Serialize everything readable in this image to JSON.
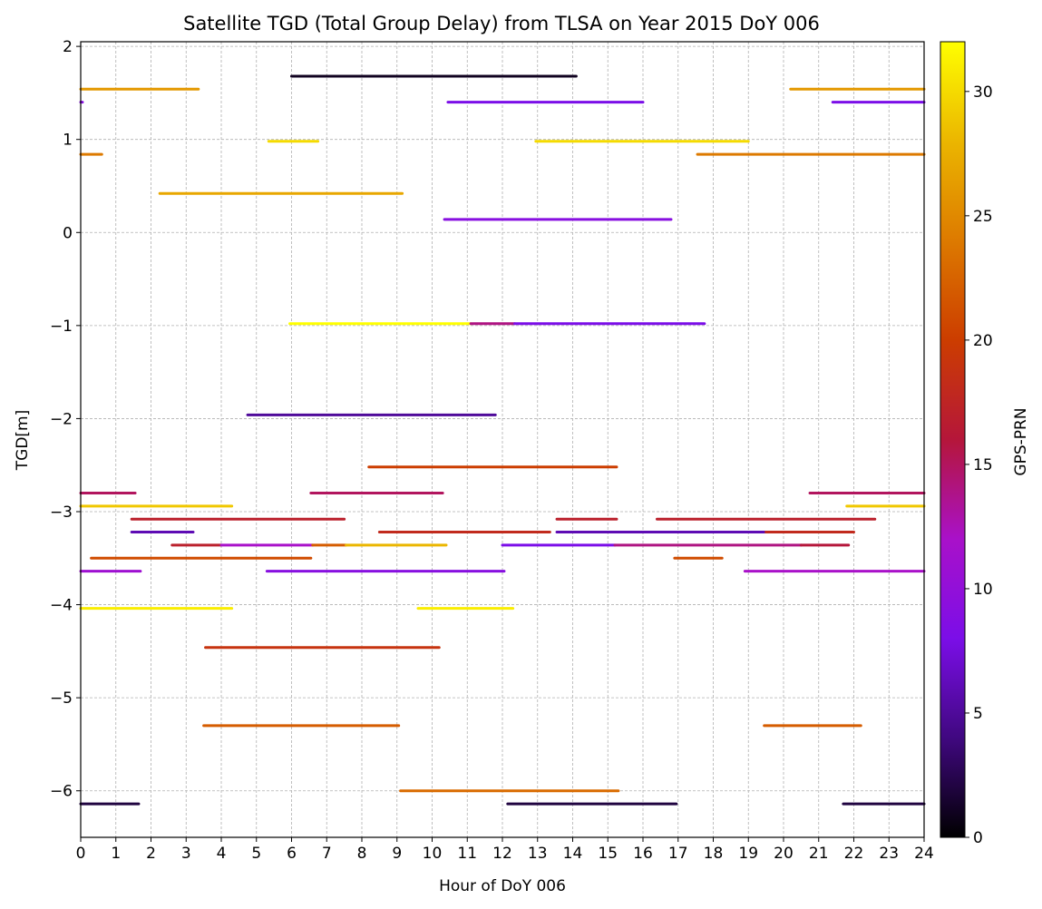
{
  "chart_data": {
    "type": "line",
    "title": "Satellite TGD (Total Group Delay) from TLSA on Year 2015 DoY 006",
    "xlabel": "Hour of DoY 006",
    "ylabel": "TGD[m]",
    "xlim": [
      0,
      24
    ],
    "ylim": [
      -6.5,
      2.05
    ],
    "x_ticks": [
      "0",
      "1",
      "2",
      "3",
      "4",
      "5",
      "6",
      "7",
      "8",
      "9",
      "10",
      "11",
      "12",
      "13",
      "14",
      "15",
      "16",
      "17",
      "18",
      "19",
      "20",
      "21",
      "22",
      "23",
      "24"
    ],
    "y_ticks": [
      {
        "value": 2,
        "label": "2"
      },
      {
        "value": 1,
        "label": "1"
      },
      {
        "value": 0,
        "label": "0"
      },
      {
        "value": -1,
        "label": "−1"
      },
      {
        "value": -2,
        "label": "−2"
      },
      {
        "value": -3,
        "label": "−3"
      },
      {
        "value": -4,
        "label": "−4"
      },
      {
        "value": -5,
        "label": "−5"
      },
      {
        "value": -6,
        "label": "−6"
      }
    ],
    "grid": true,
    "colorbar": {
      "label": "GPS-PRN",
      "range": [
        0,
        32
      ],
      "colormap": "gnuplot",
      "ticks": [
        {
          "value": 0,
          "label": "0"
        },
        {
          "value": 5,
          "label": "5"
        },
        {
          "value": 10,
          "label": "10"
        },
        {
          "value": 15,
          "label": "15"
        },
        {
          "value": 20,
          "label": "20"
        },
        {
          "value": 25,
          "label": "25"
        },
        {
          "value": 30,
          "label": "30"
        }
      ]
    },
    "segments": [
      {
        "x0": 6.0,
        "x1": 14.1,
        "tgd": 1.68,
        "prn": 1
      },
      {
        "x0": 0.0,
        "x1": 3.35,
        "tgd": 1.54,
        "prn": 26
      },
      {
        "x0": 20.2,
        "x1": 24.0,
        "tgd": 1.54,
        "prn": 26
      },
      {
        "x0": 0.0,
        "x1": 0.05,
        "tgd": 1.4,
        "prn": 9
      },
      {
        "x0": 10.45,
        "x1": 16.0,
        "tgd": 1.4,
        "prn": 8
      },
      {
        "x0": 21.4,
        "x1": 24.0,
        "tgd": 1.4,
        "prn": 8
      },
      {
        "x0": 5.35,
        "x1": 6.75,
        "tgd": 0.98,
        "prn": 30
      },
      {
        "x0": 12.95,
        "x1": 19.0,
        "tgd": 0.98,
        "prn": 30
      },
      {
        "x0": 0.0,
        "x1": 0.6,
        "tgd": 0.84,
        "prn": 24
      },
      {
        "x0": 17.55,
        "x1": 24.0,
        "tgd": 0.84,
        "prn": 24
      },
      {
        "x0": 2.25,
        "x1": 9.15,
        "tgd": 0.42,
        "prn": 27
      },
      {
        "x0": 10.35,
        "x1": 16.8,
        "tgd": 0.14,
        "prn": 9
      },
      {
        "x0": 5.95,
        "x1": 11.1,
        "tgd": -0.98,
        "prn": 32
      },
      {
        "x0": 11.1,
        "x1": 12.35,
        "tgd": -0.98,
        "prn": 14
      },
      {
        "x0": 12.35,
        "x1": 17.75,
        "tgd": -0.98,
        "prn": 8
      },
      {
        "x0": 4.75,
        "x1": 11.8,
        "tgd": -1.96,
        "prn": 5
      },
      {
        "x0": 8.2,
        "x1": 15.25,
        "tgd": -2.52,
        "prn": 20
      },
      {
        "x0": 0.0,
        "x1": 1.55,
        "tgd": -2.8,
        "prn": 15
      },
      {
        "x0": 6.55,
        "x1": 10.3,
        "tgd": -2.8,
        "prn": 15
      },
      {
        "x0": 20.75,
        "x1": 24.0,
        "tgd": -2.8,
        "prn": 15
      },
      {
        "x0": 0.0,
        "x1": 4.3,
        "tgd": -2.94,
        "prn": 29
      },
      {
        "x0": 21.8,
        "x1": 24.0,
        "tgd": -2.94,
        "prn": 29
      },
      {
        "x0": 1.45,
        "x1": 7.5,
        "tgd": -3.08,
        "prn": 17
      },
      {
        "x0": 13.55,
        "x1": 15.25,
        "tgd": -3.08,
        "prn": 17
      },
      {
        "x0": 16.4,
        "x1": 22.6,
        "tgd": -3.08,
        "prn": 17
      },
      {
        "x0": 1.45,
        "x1": 3.2,
        "tgd": -3.22,
        "prn": 6
      },
      {
        "x0": 8.5,
        "x1": 13.35,
        "tgd": -3.22,
        "prn": 18
      },
      {
        "x0": 13.55,
        "x1": 19.5,
        "tgd": -3.22,
        "prn": 6
      },
      {
        "x0": 19.5,
        "x1": 22.0,
        "tgd": -3.22,
        "prn": 18
      },
      {
        "x0": 2.6,
        "x1": 4.0,
        "tgd": -3.36,
        "prn": 17
      },
      {
        "x0": 4.0,
        "x1": 6.6,
        "tgd": -3.36,
        "prn": 12
      },
      {
        "x0": 6.6,
        "x1": 7.55,
        "tgd": -3.36,
        "prn": 22
      },
      {
        "x0": 7.55,
        "x1": 10.4,
        "tgd": -3.36,
        "prn": 28
      },
      {
        "x0": 12.0,
        "x1": 15.2,
        "tgd": -3.36,
        "prn": 8
      },
      {
        "x0": 15.2,
        "x1": 20.5,
        "tgd": -3.36,
        "prn": 14
      },
      {
        "x0": 20.5,
        "x1": 21.85,
        "tgd": -3.36,
        "prn": 16
      },
      {
        "x0": 0.3,
        "x1": 6.55,
        "tgd": -3.5,
        "prn": 21
      },
      {
        "x0": 16.9,
        "x1": 18.25,
        "tgd": -3.5,
        "prn": 21
      },
      {
        "x0": 0.0,
        "x1": 1.7,
        "tgd": -3.64,
        "prn": 11
      },
      {
        "x0": 5.3,
        "x1": 12.05,
        "tgd": -3.64,
        "prn": 9
      },
      {
        "x0": 18.9,
        "x1": 24.0,
        "tgd": -3.64,
        "prn": 12
      },
      {
        "x0": 0.0,
        "x1": 4.3,
        "tgd": -4.04,
        "prn": 31
      },
      {
        "x0": 9.6,
        "x1": 12.3,
        "tgd": -4.04,
        "prn": 31
      },
      {
        "x0": 3.55,
        "x1": 10.2,
        "tgd": -4.46,
        "prn": 19
      },
      {
        "x0": 3.5,
        "x1": 9.05,
        "tgd": -5.3,
        "prn": 22
      },
      {
        "x0": 19.45,
        "x1": 22.2,
        "tgd": -5.3,
        "prn": 22
      },
      {
        "x0": 9.1,
        "x1": 15.3,
        "tgd": -6.0,
        "prn": 23
      },
      {
        "x0": 0.0,
        "x1": 1.65,
        "tgd": -6.14,
        "prn": 2
      },
      {
        "x0": 12.15,
        "x1": 16.95,
        "tgd": -6.14,
        "prn": 2
      },
      {
        "x0": 21.7,
        "x1": 24.0,
        "tgd": -6.14,
        "prn": 2
      }
    ]
  }
}
